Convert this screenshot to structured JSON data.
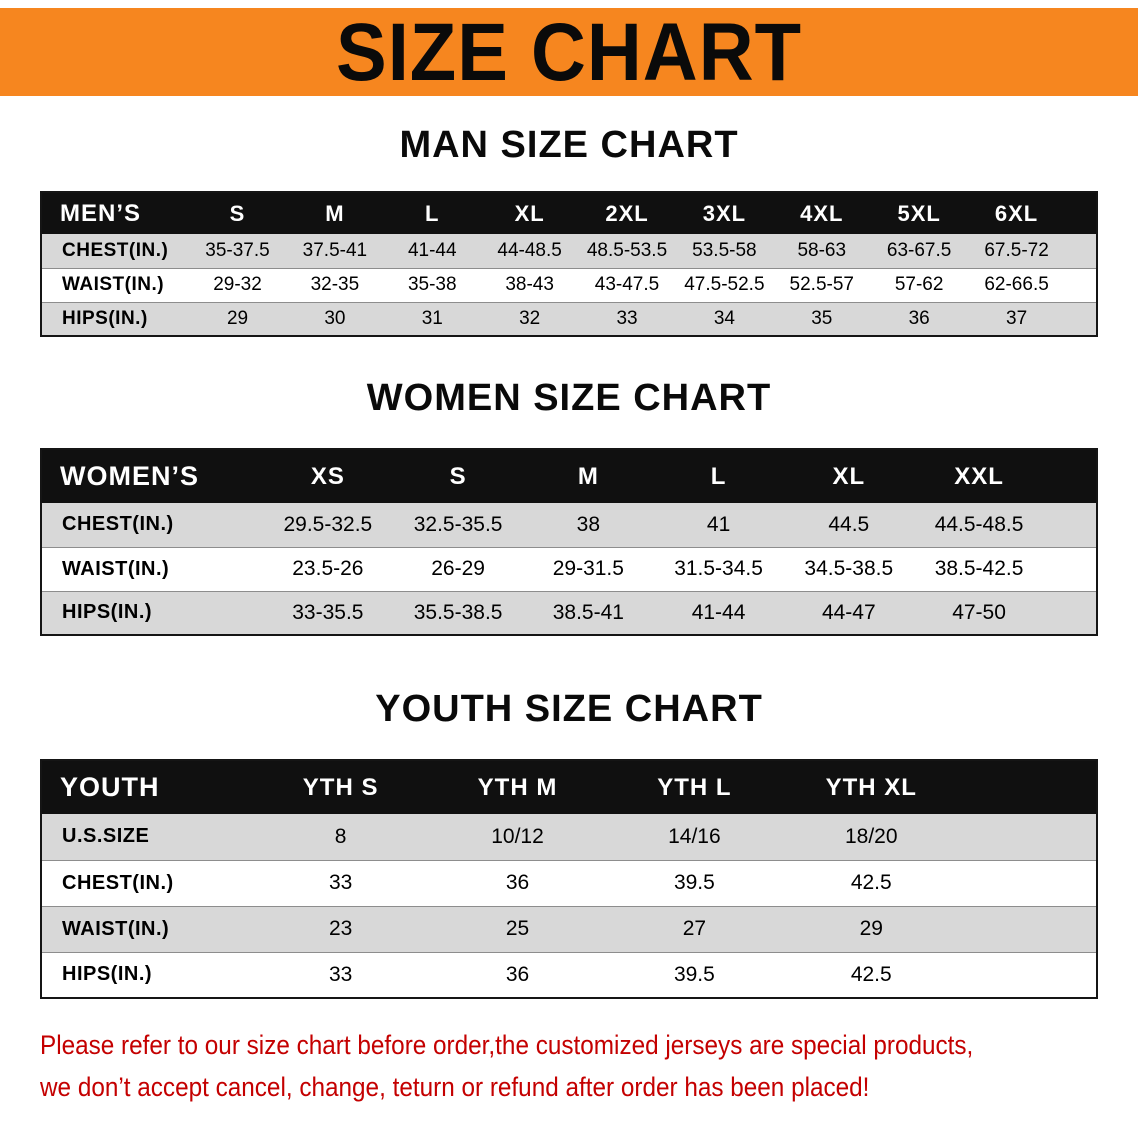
{
  "banner": {
    "title": "SIZE CHART"
  },
  "sections": [
    {
      "heading": "MAN SIZE CHART",
      "table": {
        "header": [
          "MEN’S",
          "S",
          "M",
          "L",
          "XL",
          "2XL",
          "3XL",
          "4XL",
          "5XL",
          "6XL"
        ],
        "rows": [
          {
            "label": "CHEST(IN.)",
            "values": [
              "35-37.5",
              "37.5-41",
              "41-44",
              "44-48.5",
              "48.5-53.5",
              "53.5-58",
              "58-63",
              "63-67.5",
              "67.5-72"
            ]
          },
          {
            "label": "WAIST(IN.)",
            "values": [
              "29-32",
              "32-35",
              "35-38",
              "38-43",
              "43-47.5",
              "47.5-52.5",
              "52.5-57",
              "57-62",
              "62-66.5"
            ]
          },
          {
            "label": "HIPS(IN.)",
            "values": [
              "29",
              "30",
              "31",
              "32",
              "33",
              "34",
              "35",
              "36",
              "37"
            ]
          }
        ]
      }
    },
    {
      "heading": "WOMEN SIZE CHART",
      "table": {
        "header": [
          "WOMEN’S",
          "XS",
          "S",
          "M",
          "L",
          "XL",
          "XXL"
        ],
        "rows": [
          {
            "label": "CHEST(IN.)",
            "values": [
              "29.5-32.5",
              "32.5-35.5",
              "38",
              "41",
              "44.5",
              "44.5-48.5"
            ]
          },
          {
            "label": "WAIST(IN.)",
            "values": [
              "23.5-26",
              "26-29",
              "29-31.5",
              "31.5-34.5",
              "34.5-38.5",
              "38.5-42.5"
            ]
          },
          {
            "label": "HIPS(IN.)",
            "values": [
              "33-35.5",
              "35.5-38.5",
              "38.5-41",
              "41-44",
              "44-47",
              "47-50"
            ]
          }
        ]
      }
    },
    {
      "heading": "YOUTH SIZE CHART",
      "table": {
        "header": [
          "YOUTH",
          "YTH S",
          "YTH M",
          "YTH L",
          "YTH XL"
        ],
        "rows": [
          {
            "label": "U.S.SIZE",
            "values": [
              "8",
              "10/12",
              "14/16",
              "18/20"
            ]
          },
          {
            "label": "CHEST(IN.)",
            "values": [
              "33",
              "36",
              "39.5",
              "42.5"
            ]
          },
          {
            "label": "WAIST(IN.)",
            "values": [
              "23",
              "25",
              "27",
              "29"
            ]
          },
          {
            "label": "HIPS(IN.)",
            "values": [
              "33",
              "36",
              "39.5",
              "42.5"
            ]
          }
        ]
      }
    }
  ],
  "footer": {
    "lines": [
      "Please refer to our size chart before order,the customized jerseys are special products,",
      "we don’t accept cancel, change, teturn or refund after order has been placed!"
    ]
  },
  "colors": {
    "banner_orange": "#F6861F",
    "row_gray": "#D8D8D8",
    "header_black": "#101010",
    "footer_red": "#C40000"
  }
}
